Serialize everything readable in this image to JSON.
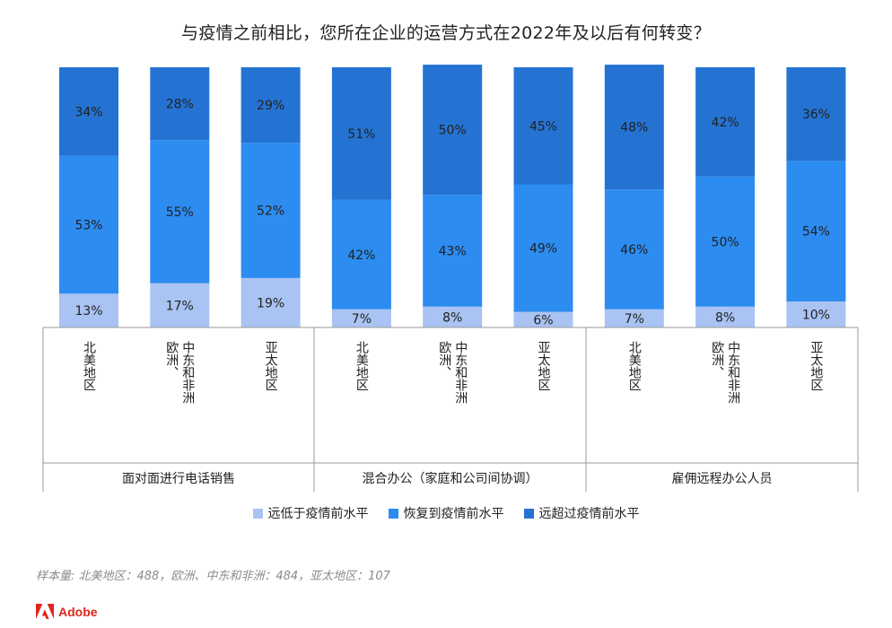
{
  "title": "与疫情之前相比，您所在企业的运营方式在2022年及以后有何转变？",
  "chart_data": {
    "type": "bar",
    "stacked": true,
    "unit": "%",
    "groups": [
      {
        "label": "面对面进行电话销售",
        "categories": [
          "北美地区",
          "欧洲、中东和非洲",
          "亚太地区"
        ]
      },
      {
        "label": "混合办公（家庭和公司间协调）",
        "categories": [
          "北美地区",
          "欧洲、中东和非洲",
          "亚太地区"
        ]
      },
      {
        "label": "雇佣远程办公人员",
        "categories": [
          "北美地区",
          "欧洲、中东和非洲",
          "亚太地区"
        ]
      }
    ],
    "series": [
      {
        "name": "远低于疫情前水平",
        "color": "#a9c3f2",
        "values": [
          13,
          17,
          19,
          7,
          8,
          6,
          7,
          8,
          10
        ]
      },
      {
        "name": "恢复到疫情前水平",
        "color": "#2d8cf0",
        "values": [
          53,
          55,
          52,
          42,
          43,
          49,
          46,
          50,
          54
        ]
      },
      {
        "name": "远超过疫情前水平",
        "color": "#2473d3",
        "values": [
          34,
          28,
          29,
          51,
          50,
          45,
          48,
          42,
          36
        ]
      }
    ],
    "ylim": [
      0,
      100
    ],
    "legend_position": "bottom"
  },
  "footnote": "样本量: 北美地区：488，欧洲、中东和非洲：484，亚太地区：107",
  "brand": {
    "name": "Adobe",
    "color": "#e1251b"
  }
}
